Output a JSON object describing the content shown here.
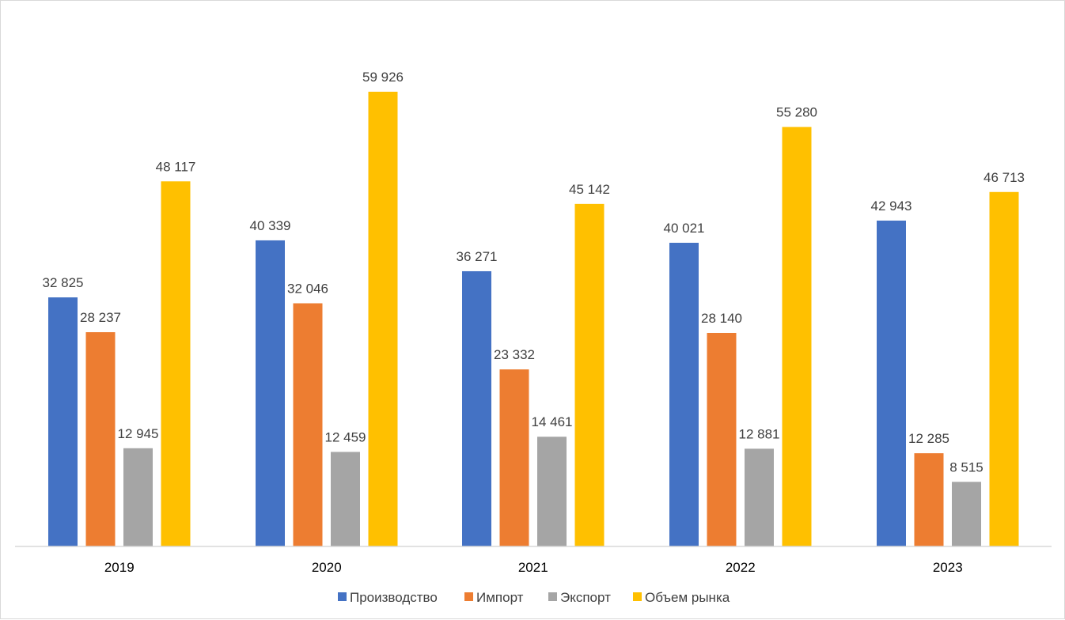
{
  "chart_data": {
    "type": "bar",
    "title": "",
    "xlabel": "",
    "ylabel": "",
    "categories": [
      "2019",
      "2020",
      "2021",
      "2022",
      "2023"
    ],
    "series": [
      {
        "name": "Производство",
        "color": "#4472C4",
        "values": [
          32825,
          40339,
          36271,
          40021,
          42943
        ],
        "labels": [
          "32 825",
          "40 339",
          "36 271",
          "40 021",
          "42 943"
        ]
      },
      {
        "name": "Импорт",
        "color": "#ED7D31",
        "values": [
          28237,
          32046,
          23332,
          28140,
          12285
        ],
        "labels": [
          "28 237",
          "32 046",
          "23 332",
          "28 140",
          "12 285"
        ]
      },
      {
        "name": "Экспорт",
        "color": "#A5A5A5",
        "values": [
          12945,
          12459,
          14461,
          12881,
          8515
        ],
        "labels": [
          "12 945",
          "12 459",
          "14 461",
          "12 881",
          "8 515"
        ]
      },
      {
        "name": "Объем рынка",
        "color": "#FFC000",
        "values": [
          48117,
          59926,
          45142,
          55280,
          46713
        ],
        "labels": [
          "48 117",
          "59 926",
          "45 142",
          "55 280",
          "46 713"
        ]
      }
    ],
    "ylim": [
      0,
      60000
    ],
    "grid": false,
    "legend_position": "bottom"
  }
}
